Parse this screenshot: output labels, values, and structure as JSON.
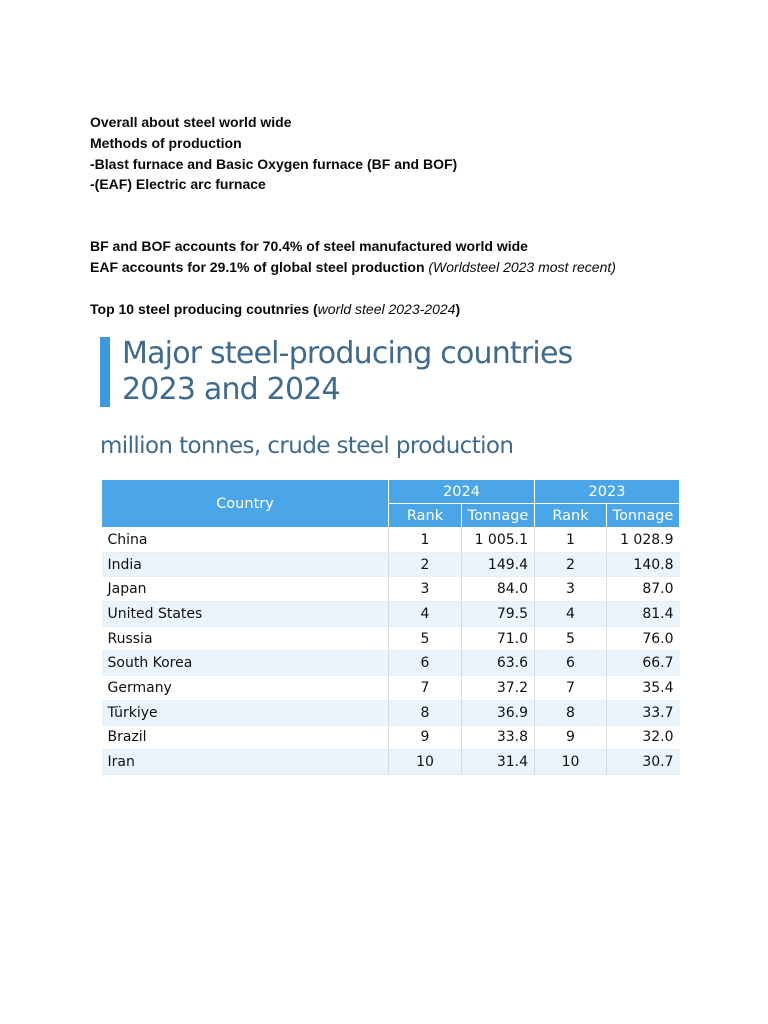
{
  "notes": {
    "lines": [
      "Overall about steel world wide",
      "Methods of production",
      "-Blast furnace and Basic Oxygen furnace (BF and BOF)",
      "-(EAF) Electric arc furnace"
    ],
    "stat_bf_bof": "BF and BOF accounts for 70.4% of steel manufactured world wide",
    "stat_eaf": "EAF accounts for 29.1% of global steel production",
    "stat_eaf_source": "(Worldsteel 2023 most recent)",
    "top10_prefix": "Top 10 steel producing coutnries (",
    "top10_source": "world steel 2023-2024",
    "top10_suffix": ")"
  },
  "figure": {
    "title_line1": "Major steel-producing countries",
    "title_line2": "2023 and 2024",
    "subtitle": "million tonnes, crude steel production",
    "headers": {
      "country": "Country",
      "year_a": "2024",
      "year_b": "2023",
      "rank_a": "Rank",
      "tonnage_a": "Tonnage",
      "rank_b": "Rank",
      "tonnage_b": "Tonnage"
    },
    "rows": [
      {
        "country": "China",
        "rank_2024": "1",
        "tonnage_2024": "1 005.1",
        "rank_2023": "1",
        "tonnage_2023": "1 028.9"
      },
      {
        "country": "India",
        "rank_2024": "2",
        "tonnage_2024": "149.4",
        "rank_2023": "2",
        "tonnage_2023": "140.8"
      },
      {
        "country": "Japan",
        "rank_2024": "3",
        "tonnage_2024": "84.0",
        "rank_2023": "3",
        "tonnage_2023": "87.0"
      },
      {
        "country": "United States",
        "rank_2024": "4",
        "tonnage_2024": "79.5",
        "rank_2023": "4",
        "tonnage_2023": "81.4"
      },
      {
        "country": "Russia",
        "rank_2024": "5",
        "tonnage_2024": "71.0",
        "rank_2023": "5",
        "tonnage_2023": "76.0"
      },
      {
        "country": "South Korea",
        "rank_2024": "6",
        "tonnage_2024": "63.6",
        "rank_2023": "6",
        "tonnage_2023": "66.7"
      },
      {
        "country": "Germany",
        "rank_2024": "7",
        "tonnage_2024": "37.2",
        "rank_2023": "7",
        "tonnage_2023": "35.4"
      },
      {
        "country": "Türkiye",
        "rank_2024": "8",
        "tonnage_2024": "36.9",
        "rank_2023": "8",
        "tonnage_2023": "33.7"
      },
      {
        "country": "Brazil",
        "rank_2024": "9",
        "tonnage_2024": "33.8",
        "rank_2023": "9",
        "tonnage_2023": "32.0"
      },
      {
        "country": "Iran",
        "rank_2024": "10",
        "tonnage_2024": "31.4",
        "rank_2023": "10",
        "tonnage_2023": "30.7"
      }
    ]
  }
}
